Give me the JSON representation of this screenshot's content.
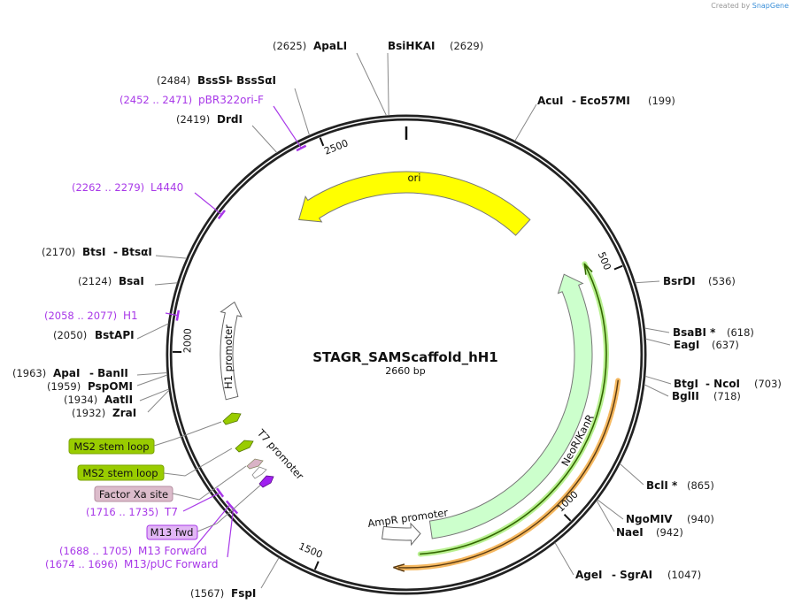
{
  "credit": {
    "prefix": "Created by",
    "brand": "SnapGene"
  },
  "plasmid": {
    "name": "STAGR_SAMScaffold_hH1",
    "length_label": "2660 bp",
    "length_bp": 2660
  },
  "ticks": [
    {
      "bp": 500,
      "label": "500"
    },
    {
      "bp": 1000,
      "label": "1000"
    },
    {
      "bp": 1500,
      "label": "1500"
    },
    {
      "bp": 2000,
      "label": "2000"
    },
    {
      "bp": 2500,
      "label": "2500"
    }
  ],
  "sites": [
    {
      "name": "ApaLI",
      "pos": "(2625)",
      "bp": 2625
    },
    {
      "name": "BsiHKAI",
      "pos": "(2629)",
      "bp": 2629
    },
    {
      "name": "AcuI",
      "alt": "- Eco57MI",
      "pos": "(199)",
      "bp": 199
    },
    {
      "name": "BssSI",
      "alt": "- BssSαI",
      "pos": "(2484)",
      "bp": 2484
    },
    {
      "name": "DrdI",
      "pos": "(2419)",
      "bp": 2419
    },
    {
      "name": "BtsI",
      "alt": "- BtsαI",
      "pos": "(2170)",
      "bp": 2170
    },
    {
      "name": "BsaI",
      "pos": "(2124)",
      "bp": 2124
    },
    {
      "name": "BstAPI",
      "pos": "(2050)",
      "bp": 2050
    },
    {
      "name": "ApaI",
      "alt": "- BanII",
      "pos": "(1963)",
      "bp": 1963
    },
    {
      "name": "PspOMI",
      "pos": "(1959)",
      "bp": 1959
    },
    {
      "name": "AatII",
      "pos": "(1934)",
      "bp": 1934
    },
    {
      "name": "ZraI",
      "pos": "(1932)",
      "bp": 1932
    },
    {
      "name": "FspI",
      "pos": "(1567)",
      "bp": 1567
    },
    {
      "name": "BsrDI",
      "pos": "(536)",
      "bp": 536
    },
    {
      "name": "BsaBI *",
      "pos": "(618)",
      "bp": 618
    },
    {
      "name": "EagI",
      "pos": "(637)",
      "bp": 637
    },
    {
      "name": "BtgI",
      "alt": "- NcoI",
      "pos": "(703)",
      "bp": 703
    },
    {
      "name": "BglII",
      "pos": "(718)",
      "bp": 718
    },
    {
      "name": "BclI *",
      "pos": "(865)",
      "bp": 865
    },
    {
      "name": "NgoMIV",
      "pos": "(940)",
      "bp": 940
    },
    {
      "name": "NaeI",
      "pos": "(942)",
      "bp": 942
    },
    {
      "name": "AgeI",
      "alt": "- SgrAI",
      "pos": "(1047)",
      "bp": 1047
    }
  ],
  "primers": [
    {
      "name": "pBR322ori-F",
      "range": "(2452 .. 2471)",
      "bp": 2461
    },
    {
      "name": "L4440",
      "range": "(2262 .. 2279)",
      "bp": 2270
    },
    {
      "name": "H1",
      "range": "(2058 .. 2077)",
      "bp": 2067
    },
    {
      "name": "T7",
      "range": "(1716 .. 1735)",
      "bp": 1725
    },
    {
      "name": "M13 Forward",
      "range": "(1688 .. 1705)",
      "bp": 1696
    },
    {
      "name": "M13/pUC Forward",
      "range": "(1674 .. 1696)",
      "bp": 1685
    }
  ],
  "features": [
    {
      "name": "ori",
      "color": "#ffff00"
    },
    {
      "name": "NeoR/KanR",
      "color": "#ccffcc"
    },
    {
      "name": "AmpR promoter",
      "color": "#ffffff"
    },
    {
      "name": "H1 promoter",
      "color": "#ffffff"
    },
    {
      "name": "T7 promoter",
      "color": "#ffffff"
    },
    {
      "name": "MS2 stem loop",
      "color": "#99cc00"
    },
    {
      "name": "MS2 stem loop",
      "color": "#99cc00"
    },
    {
      "name": "Factor Xa site",
      "color": "#d9b3c6"
    },
    {
      "name": "M13 fwd",
      "color": "#a838e8"
    }
  ],
  "colors": {
    "primer": "#a838e8",
    "orf_line": "#336600",
    "orange_line": "#f5b860"
  }
}
